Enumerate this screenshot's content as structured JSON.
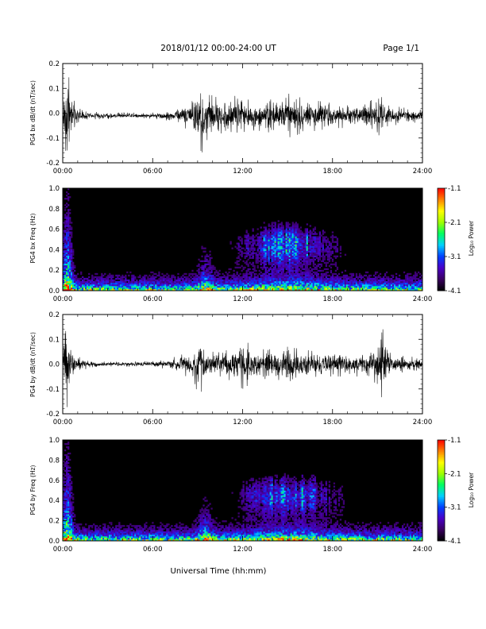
{
  "header": {
    "title": "2018/01/12  00:00-24:00 UT",
    "page": "Page 1/1"
  },
  "xaxis_title": "Universal Time (hh:mm)",
  "colorbar": {
    "label": "Log₁₀ Power",
    "ticks": [
      "-1.1",
      "-2.1",
      "-3.1",
      "-4.1"
    ],
    "range": [
      -4.1,
      -1.1
    ],
    "colors": [
      "#000000",
      "#3a0060",
      "#4a00c8",
      "#0040ff",
      "#00d0ff",
      "#00ff60",
      "#a0ff00",
      "#ffff00",
      "#ff8000",
      "#ff0000"
    ]
  },
  "chart_data": [
    {
      "type": "line",
      "ylabel": "PG4 bx dB/dt (nT/sec)",
      "xlim": [
        0,
        24
      ],
      "ylim": [
        -0.2,
        0.2
      ],
      "xticks": [
        "00:00",
        "06:00",
        "12:00",
        "18:00",
        "24:00"
      ],
      "yticks": [
        "0.2",
        "0.1",
        "0.0",
        "-0.1",
        "-0.2"
      ],
      "baseline": -0.01,
      "envelope": {
        "hours": [
          0,
          0.15,
          0.3,
          0.6,
          1,
          2,
          4,
          6,
          7,
          8,
          8.5,
          9,
          9.3,
          9.6,
          10,
          10.5,
          11,
          11.5,
          12,
          12.5,
          13,
          14,
          15,
          16,
          17,
          18,
          19,
          20,
          21,
          21.3,
          21.6,
          22,
          23,
          24
        ],
        "amplitude": [
          0.03,
          0.15,
          0.2,
          0.08,
          0.03,
          0.015,
          0.012,
          0.012,
          0.02,
          0.04,
          0.07,
          0.12,
          0.15,
          0.1,
          0.08,
          0.07,
          0.08,
          0.1,
          0.08,
          0.06,
          0.06,
          0.07,
          0.09,
          0.07,
          0.06,
          0.05,
          0.05,
          0.05,
          0.08,
          0.15,
          0.06,
          0.04,
          0.03,
          0.03
        ]
      }
    },
    {
      "type": "heatmap",
      "ylabel": "PG4 bx Freq (Hz)",
      "xlim": [
        0,
        24
      ],
      "ylim": [
        0.0,
        1.0
      ],
      "xticks": [
        "00:00",
        "06:00",
        "12:00",
        "18:00",
        "24:00"
      ],
      "yticks": [
        "1.0",
        "0.8",
        "0.6",
        "0.4",
        "0.2",
        "0.0"
      ],
      "zlim": [
        -4.1,
        -1.1
      ]
    },
    {
      "type": "line",
      "ylabel": "PG4 by dB/dt (nT/sec)",
      "xlim": [
        0,
        24
      ],
      "ylim": [
        -0.2,
        0.2
      ],
      "xticks": [
        "00:00",
        "06:00",
        "12:00",
        "18:00",
        "24:00"
      ],
      "yticks": [
        "0.2",
        "0.1",
        "0.0",
        "-0.1",
        "-0.2"
      ],
      "baseline": 0.0,
      "envelope": {
        "hours": [
          0,
          0.15,
          0.3,
          0.6,
          1,
          2,
          4,
          6,
          7,
          8,
          8.5,
          9,
          9.3,
          9.6,
          10,
          10.5,
          11,
          11.5,
          12,
          12.5,
          13,
          14,
          15,
          16,
          17,
          18,
          19,
          20,
          21,
          21.3,
          21.6,
          22,
          23,
          24
        ],
        "amplitude": [
          0.03,
          0.13,
          0.18,
          0.07,
          0.03,
          0.012,
          0.01,
          0.012,
          0.02,
          0.04,
          0.06,
          0.11,
          0.14,
          0.07,
          0.05,
          0.05,
          0.06,
          0.08,
          0.1,
          0.08,
          0.06,
          0.06,
          0.07,
          0.06,
          0.05,
          0.05,
          0.05,
          0.05,
          0.08,
          0.16,
          0.06,
          0.04,
          0.03,
          0.03
        ]
      }
    },
    {
      "type": "heatmap",
      "ylabel": "PG4 by Freq (Hz)",
      "xlim": [
        0,
        24
      ],
      "ylim": [
        0.0,
        1.0
      ],
      "xticks": [
        "00:00",
        "06:00",
        "12:00",
        "18:00",
        "24:00"
      ],
      "yticks": [
        "1.0",
        "0.8",
        "0.6",
        "0.4",
        "0.2",
        "0.0"
      ],
      "zlim": [
        -4.1,
        -1.1
      ]
    }
  ]
}
